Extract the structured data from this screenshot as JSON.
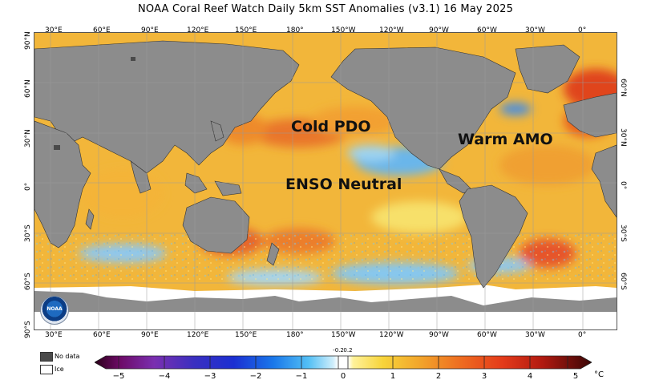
{
  "title": "NOAA Coral Reef Watch Daily 5km SST Anomalies  (v3.1)   16 May 2025",
  "lon_labels_top": [
    "30°E",
    "60°E",
    "90°E",
    "120°E",
    "150°E",
    "180°",
    "150°W",
    "120°W",
    "90°W",
    "60°W",
    "30°W",
    "0°"
  ],
  "lon_labels_bottom": [
    "30°E",
    "60°E",
    "90°E",
    "120°E",
    "150°E",
    "180°",
    "150°W",
    "120°W",
    "90°W",
    "60°W",
    "30°W",
    "0°"
  ],
  "lat_labels_left": [
    "90°N",
    "60°N",
    "30°N",
    "0°",
    "30°S",
    "60°S",
    "90°S"
  ],
  "lat_labels_right": [
    "60°N",
    "30°N",
    "0°",
    "30°S",
    "60°S"
  ],
  "annotations": {
    "pdo": "Cold PDO",
    "amo": "Warm AMO",
    "enso": "ENSO Neutral"
  },
  "legend": {
    "no_data": "No data",
    "ice": "Ice"
  },
  "logo_text": "NOAA",
  "colorbar": {
    "ticks": [
      "−5",
      "−4",
      "−3",
      "−2",
      "−1",
      "0",
      "1",
      "2",
      "3",
      "4",
      "5"
    ],
    "small_ticks": [
      "-0.2",
      "0.2"
    ],
    "unit": "°C",
    "min": -5,
    "max": 5
  },
  "colors": {
    "land": "#8c8c8c",
    "no_data": "#4a4a4a",
    "ice": "#ffffff",
    "ocean_base": "#f2b63a"
  }
}
